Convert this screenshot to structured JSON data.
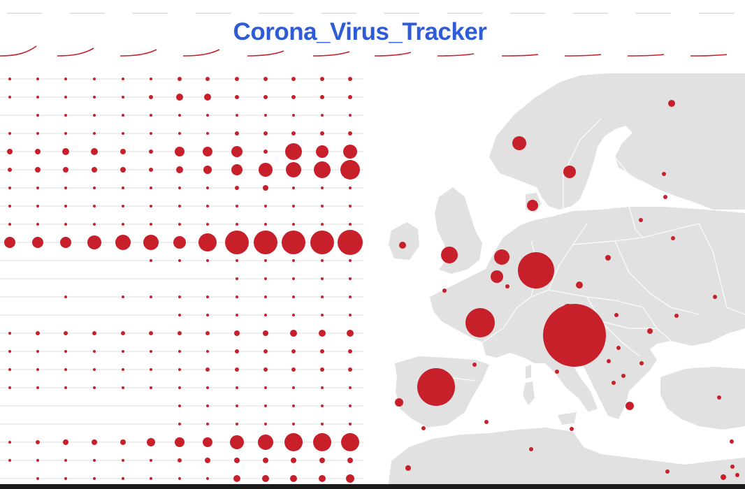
{
  "title": "Corona_Virus_Tracker",
  "colors": {
    "title": "#2f5bd6",
    "marker": "#c8202b",
    "land": "#e1e1e1",
    "borders": "#f8f8f8",
    "sea": "#ffffff",
    "grid": "#e3e3e3",
    "bottom_bar": "#1c1c1c"
  }
}
